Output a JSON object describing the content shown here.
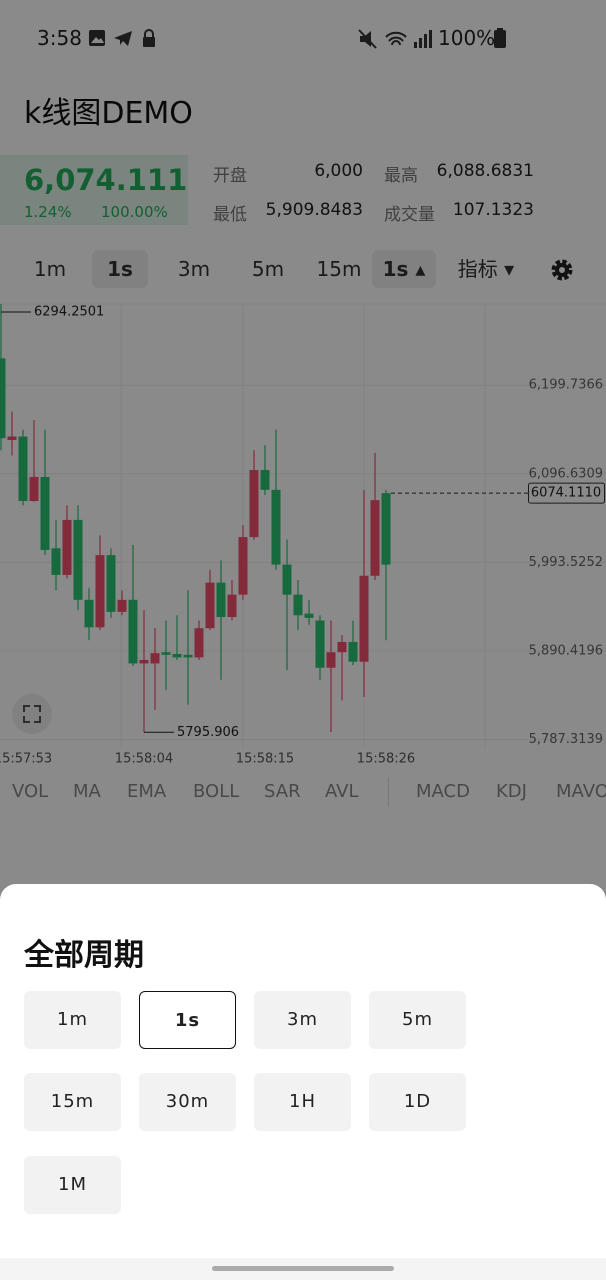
{
  "status_bar": {
    "time": "3:58",
    "battery": "100%"
  },
  "header": {
    "title": "k线图DEMO"
  },
  "ticker": {
    "price": "6,074.111",
    "change": "1.24%",
    "ratio": "100.00%",
    "stats": [
      {
        "label": "开盘",
        "value": "6,000"
      },
      {
        "label": "最高",
        "value": "6,088.6831"
      },
      {
        "label": "最低",
        "value": "5,909.8483"
      },
      {
        "label": "成交量",
        "value": "107.1323"
      }
    ]
  },
  "period_tabs": {
    "items": [
      "1m",
      "1s",
      "3m",
      "5m",
      "15m"
    ],
    "selected": "1s",
    "more": "1s",
    "indicator_button": "指标"
  },
  "chart": {
    "type": "candlestick",
    "up_color": "#2cc471",
    "down_color": "#f2506e",
    "ylim": [
      5777.6,
      6294.2
    ],
    "yticks": [
      {
        "value": 6199.7366,
        "label": "6,199.7366"
      },
      {
        "value": 6096.6309,
        "label": "6,096.6309"
      },
      {
        "value": 5993.5252,
        "label": "5,993.5252"
      },
      {
        "value": 5890.4196,
        "label": "5,890.4196"
      },
      {
        "value": 5787.3139,
        "label": "5,787.3139"
      }
    ],
    "xtick_labels": [
      "15:57:53",
      "15:58:04",
      "15:58:15",
      "15:58:26"
    ],
    "last_price_label": "6074.1110",
    "candles": [
      {
        "open": 6138,
        "high": 6294.2501,
        "low": 6124,
        "close": 6231
      },
      {
        "open": 6140,
        "high": 6169,
        "low": 6118,
        "close": 6136
      },
      {
        "open": 6065,
        "high": 6148,
        "low": 6060,
        "close": 6140
      },
      {
        "open": 6093,
        "high": 6159,
        "low": 6064,
        "close": 6065
      },
      {
        "open": 6008,
        "high": 6148,
        "low": 6002,
        "close": 6093
      },
      {
        "open": 5979,
        "high": 6043,
        "low": 5961,
        "close": 6010
      },
      {
        "open": 6043,
        "high": 6060,
        "low": 5975,
        "close": 5979
      },
      {
        "open": 5950,
        "high": 6060,
        "low": 5938,
        "close": 6043
      },
      {
        "open": 5918,
        "high": 5964,
        "low": 5903,
        "close": 5950
      },
      {
        "open": 6002,
        "high": 6025,
        "low": 5915,
        "close": 5918
      },
      {
        "open": 5936,
        "high": 6010,
        "low": 5929,
        "close": 6002
      },
      {
        "open": 5950,
        "high": 5961,
        "low": 5932,
        "close": 5936
      },
      {
        "open": 5876,
        "high": 6014,
        "low": 5873,
        "close": 5950
      },
      {
        "open": 5880,
        "high": 5938,
        "low": 5795.906,
        "close": 5876
      },
      {
        "open": 5888,
        "high": 5917,
        "low": 5822,
        "close": 5876
      },
      {
        "open": 5886,
        "high": 5926,
        "low": 5845,
        "close": 5889
      },
      {
        "open": 5883,
        "high": 5932,
        "low": 5880,
        "close": 5887
      },
      {
        "open": 5883,
        "high": 5961,
        "low": 5828,
        "close": 5886
      },
      {
        "open": 5917,
        "high": 5926,
        "low": 5880,
        "close": 5883
      },
      {
        "open": 5970,
        "high": 5985,
        "low": 5915,
        "close": 5917
      },
      {
        "open": 5930,
        "high": 5996,
        "low": 5857,
        "close": 5970
      },
      {
        "open": 5956,
        "high": 5973,
        "low": 5926,
        "close": 5930
      },
      {
        "open": 6023,
        "high": 6037,
        "low": 5950,
        "close": 5956
      },
      {
        "open": 6101,
        "high": 6124,
        "low": 6020,
        "close": 6023
      },
      {
        "open": 6078,
        "high": 6130,
        "low": 6072,
        "close": 6101
      },
      {
        "open": 5991,
        "high": 6148,
        "low": 5985,
        "close": 6078
      },
      {
        "open": 5956,
        "high": 6020,
        "low": 5868,
        "close": 5991
      },
      {
        "open": 5932,
        "high": 5973,
        "low": 5915,
        "close": 5956
      },
      {
        "open": 5929,
        "high": 5950,
        "low": 5921,
        "close": 5934
      },
      {
        "open": 5871,
        "high": 5932,
        "low": 5857,
        "close": 5926
      },
      {
        "open": 5889,
        "high": 5926,
        "low": 5796,
        "close": 5871
      },
      {
        "open": 5901,
        "high": 5909,
        "low": 5833,
        "close": 5889
      },
      {
        "open": 5878,
        "high": 5926,
        "low": 5874,
        "close": 5901
      },
      {
        "open": 5978,
        "high": 6078,
        "low": 5837,
        "close": 5878
      },
      {
        "open": 6066,
        "high": 6121,
        "low": 5973,
        "close": 5978
      },
      {
        "open": 5991,
        "high": 6078,
        "low": 5903,
        "close": 6074.111
      }
    ]
  },
  "indicators": {
    "main": [
      "VOL",
      "MA",
      "EMA",
      "BOLL",
      "SAR",
      "AVL"
    ],
    "sub": [
      "MACD",
      "KDJ",
      "MAVOL"
    ]
  },
  "sheet": {
    "title": "全部周期",
    "options": [
      "1m",
      "1s",
      "3m",
      "5m",
      "15m",
      "30m",
      "1H",
      "1D",
      "1M"
    ],
    "selected": "1s"
  }
}
